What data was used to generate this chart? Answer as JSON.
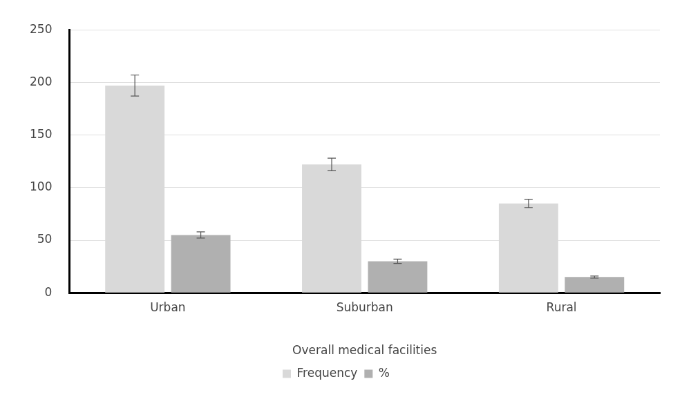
{
  "chart_data": {
    "type": "bar",
    "xlabel": "Overall medical facilities",
    "categories": [
      "Urban",
      "Suburban",
      "Rural"
    ],
    "series": [
      {
        "name": "Frequency",
        "color": "#d9d9d9",
        "values": [
          197,
          122,
          85
        ],
        "errors": [
          10,
          6,
          4
        ]
      },
      {
        "name": "%",
        "color": "#b0b0b0",
        "values": [
          55,
          30,
          15
        ],
        "errors": [
          3,
          2,
          1
        ]
      }
    ],
    "ylim": [
      0,
      250
    ],
    "yticks": [
      0,
      50,
      100,
      150,
      200,
      250
    ],
    "grid": "y",
    "legend": "bottom"
  }
}
